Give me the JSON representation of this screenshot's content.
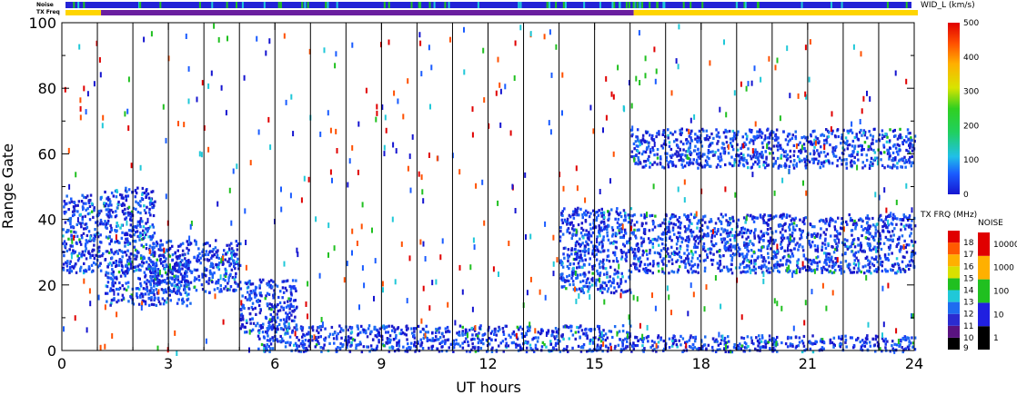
{
  "chart_data": {
    "type": "heatmap",
    "title": "",
    "xlabel": "UT hours",
    "ylabel": "Range Gate",
    "xlim": [
      0,
      24
    ],
    "ylim": [
      0,
      100
    ],
    "x_ticks": [
      "0",
      "3",
      "6",
      "9",
      "12",
      "15",
      "18",
      "21",
      "24"
    ],
    "y_ticks": [
      "0",
      "20",
      "40",
      "60",
      "80",
      "100"
    ],
    "grid": "vertical lines every hour",
    "top_bars": {
      "noise_label": "Noise",
      "freq_label": "TX Freq",
      "freq_segments": [
        {
          "start": 0,
          "end": 1,
          "color": "#ffd500"
        },
        {
          "start": 1,
          "end": 16,
          "color": "#6a1fa0"
        },
        {
          "start": 16,
          "end": 24,
          "color": "#ffd500"
        }
      ]
    },
    "scatter_colorbar": {
      "label": "WID_L (km/s)",
      "range": [
        0,
        500
      ],
      "ticks": [
        "0",
        "100",
        "200",
        "300",
        "400",
        "500"
      ]
    },
    "freq_colorbar": {
      "label": "TX FRQ (MHz)",
      "ticks": [
        "9",
        "10",
        "11",
        "12",
        "13",
        "14",
        "15",
        "16",
        "17",
        "18"
      ],
      "colors": [
        "#000000",
        "#5a1380",
        "#2b2bd0",
        "#1e6cf0",
        "#20c8d8",
        "#20c020",
        "#d8e000",
        "#ffb000",
        "#ff5a00",
        "#e00000"
      ]
    },
    "noise_colorbar": {
      "label": "NOISE",
      "ticks": [
        "1",
        "10",
        "100",
        "1000",
        "10000"
      ],
      "colors": [
        "#000000",
        "#2020e0",
        "#20c020",
        "#ffb000",
        "#e00000"
      ]
    },
    "echo_regions": [
      {
        "t0": 0.0,
        "t1": 1.1,
        "g0": 24,
        "g1": 48
      },
      {
        "t0": 1.1,
        "t1": 2.6,
        "g0": 28,
        "g1": 50
      },
      {
        "t0": 1.2,
        "t1": 3.6,
        "g0": 14,
        "g1": 28
      },
      {
        "t0": 2.4,
        "t1": 5.0,
        "g0": 18,
        "g1": 34
      },
      {
        "t0": 5.0,
        "t1": 6.6,
        "g0": 6,
        "g1": 22
      },
      {
        "t0": 5.5,
        "t1": 16.0,
        "g0": 0,
        "g1": 8
      },
      {
        "t0": 14.0,
        "t1": 16.0,
        "g0": 18,
        "g1": 44
      },
      {
        "t0": 16.0,
        "t1": 24.0,
        "g0": 24,
        "g1": 42
      },
      {
        "t0": 16.0,
        "t1": 24.0,
        "g0": 56,
        "g1": 68
      },
      {
        "t0": 16.0,
        "t1": 24.0,
        "g0": 0,
        "g1": 5
      }
    ]
  }
}
